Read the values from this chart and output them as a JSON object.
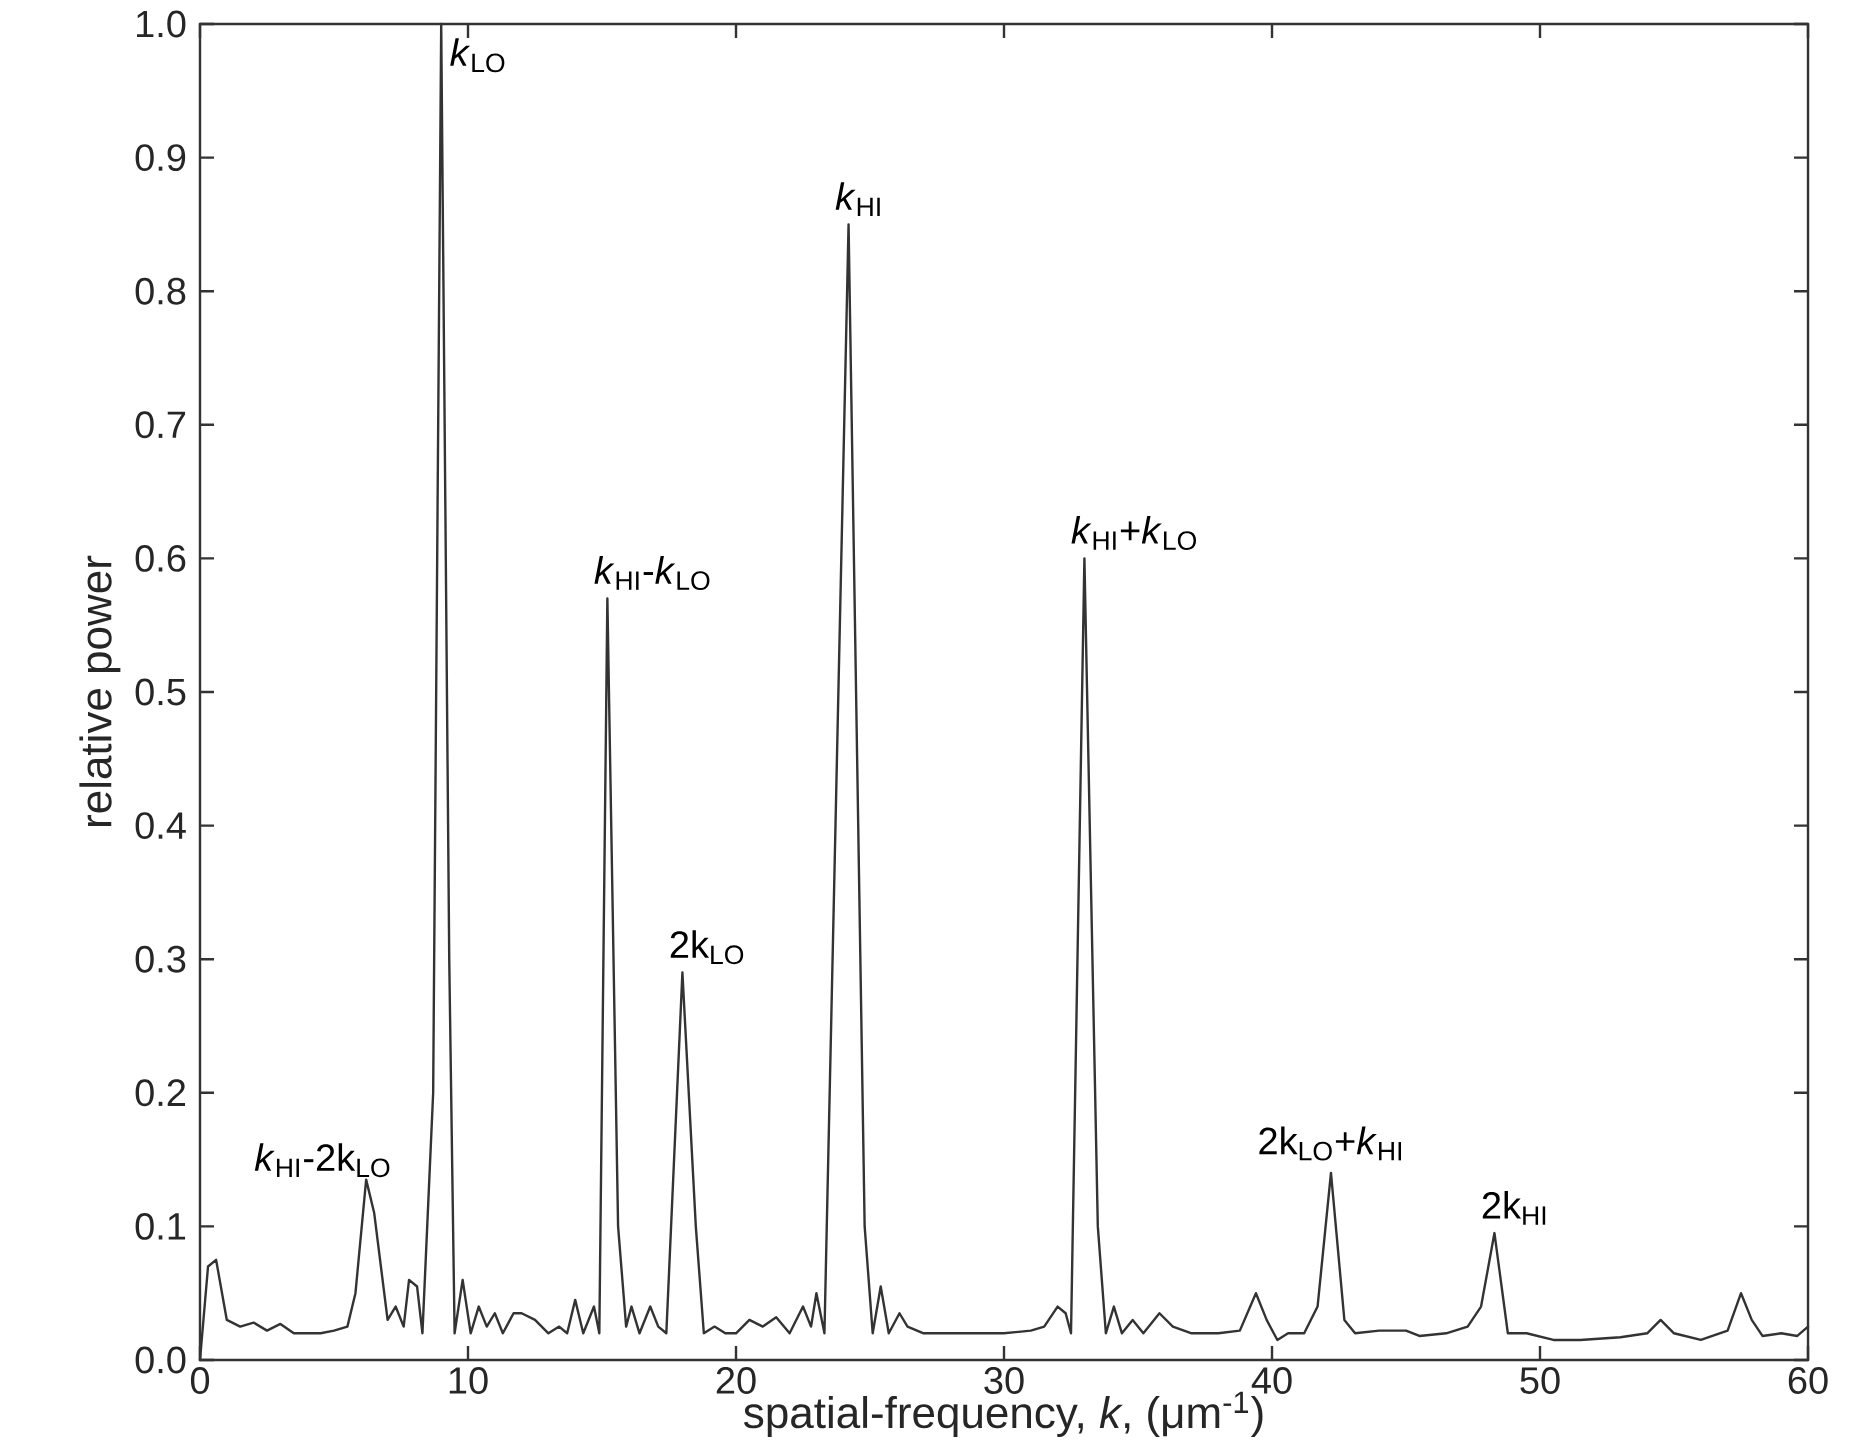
{
  "chart_data": {
    "type": "line",
    "xlabel": "spatial-frequency, *k*, (μm$^{-1}$)",
    "ylabel": "relative power",
    "xlim": [
      0,
      60
    ],
    "ylim": [
      0,
      1
    ],
    "xticks": [
      0,
      10,
      20,
      30,
      40,
      50,
      60
    ],
    "yticks": [
      {
        "value": 0,
        "label": "0.0"
      },
      {
        "value": 0.1,
        "label": "0.1"
      },
      {
        "value": 0.2,
        "label": "0.2"
      },
      {
        "value": 0.3,
        "label": "0.3"
      },
      {
        "value": 0.4,
        "label": "0.4"
      },
      {
        "value": 0.5,
        "label": "0.5"
      },
      {
        "value": 0.6,
        "label": "0.6"
      },
      {
        "value": 0.7,
        "label": "0.7"
      },
      {
        "value": 0.8,
        "label": "0.8"
      },
      {
        "value": 0.9,
        "label": "0.9"
      },
      {
        "value": 1,
        "label": "1.0"
      }
    ],
    "grid": false,
    "marker": "none",
    "line_style": "solid",
    "series": [
      {
        "color": "#333333",
        "x": [
          0,
          0.3,
          0.6,
          1.0,
          1.5,
          2,
          2.5,
          3,
          3.5,
          4,
          4.5,
          5,
          5.5,
          5.8,
          6.2,
          6.5,
          7,
          7.3,
          7.6,
          7.8,
          8.1,
          8.3,
          8.7,
          9.0,
          9.3,
          9.5,
          9.8,
          10.1,
          10.4,
          10.7,
          11,
          11.3,
          11.7,
          12,
          12.5,
          13,
          13.4,
          13.7,
          14.0,
          14.3,
          14.7,
          14.9,
          15.2,
          15.6,
          15.9,
          16.1,
          16.4,
          16.8,
          17.1,
          17.4,
          18.0,
          18.5,
          18.8,
          19.2,
          19.6,
          20,
          20.5,
          21,
          21.5,
          22,
          22.5,
          22.8,
          23.0,
          23.3,
          24.2,
          24.8,
          25.1,
          25.4,
          25.7,
          26.1,
          26.4,
          27,
          28,
          29,
          30,
          31,
          31.5,
          32,
          32.3,
          32.5,
          33.0,
          33.5,
          33.8,
          34.1,
          34.4,
          34.8,
          35.2,
          35.8,
          36.3,
          37,
          38,
          38.8,
          39.4,
          39.8,
          40.2,
          40.6,
          41.2,
          41.7,
          42.2,
          42.7,
          43.1,
          44,
          45,
          45.5,
          46.5,
          47.3,
          47.8,
          48.3,
          48.8,
          49.5,
          50.5,
          51.5,
          53,
          54,
          54.5,
          55,
          56,
          57,
          57.5,
          57.9,
          58.3,
          59,
          59.6,
          60
        ],
        "values": [
          0,
          0.07,
          0.075,
          0.03,
          0.025,
          0.028,
          0.022,
          0.027,
          0.02,
          0.02,
          0.02,
          0.022,
          0.025,
          0.05,
          0.135,
          0.11,
          0.03,
          0.04,
          0.025,
          0.06,
          0.055,
          0.02,
          0.2,
          1.0,
          0.3,
          0.02,
          0.06,
          0.02,
          0.04,
          0.025,
          0.035,
          0.02,
          0.035,
          0.035,
          0.03,
          0.02,
          0.025,
          0.02,
          0.045,
          0.02,
          0.04,
          0.02,
          0.57,
          0.1,
          0.025,
          0.04,
          0.02,
          0.04,
          0.025,
          0.02,
          0.29,
          0.1,
          0.02,
          0.025,
          0.02,
          0.02,
          0.03,
          0.025,
          0.032,
          0.02,
          0.04,
          0.025,
          0.05,
          0.02,
          0.85,
          0.1,
          0.02,
          0.055,
          0.02,
          0.035,
          0.025,
          0.02,
          0.02,
          0.02,
          0.02,
          0.022,
          0.025,
          0.04,
          0.035,
          0.02,
          0.6,
          0.1,
          0.02,
          0.04,
          0.02,
          0.03,
          0.02,
          0.035,
          0.025,
          0.02,
          0.02,
          0.022,
          0.05,
          0.03,
          0.015,
          0.02,
          0.02,
          0.04,
          0.14,
          0.03,
          0.02,
          0.022,
          0.022,
          0.018,
          0.02,
          0.025,
          0.04,
          0.095,
          0.02,
          0.02,
          0.015,
          0.015,
          0.017,
          0.02,
          0.03,
          0.02,
          0.015,
          0.022,
          0.05,
          0.03,
          0.018,
          0.02,
          0.018,
          0.025
        ]
      }
    ],
    "annotations": [
      {
        "text": "*k*$_{HI}$-2k$_{LO}$",
        "x": 6.2,
        "y": 0.135
      },
      {
        "text": "*k*$_{LO}$",
        "x": 9,
        "y": 1.0
      },
      {
        "text": "*k*$_{HI}$-*k*$_{LO}$",
        "x": 15.2,
        "y": 0.57
      },
      {
        "text": "2k$_{LO}$",
        "x": 18,
        "y": 0.29
      },
      {
        "text": "*k*$_{HI}$",
        "x": 24.2,
        "y": 0.85
      },
      {
        "text": "*k*$_{HI}$+*k*$_{LO}$",
        "x": 33,
        "y": 0.6
      },
      {
        "text": "2k$_{LO}$+*k*$_{HI}$",
        "x": 42.2,
        "y": 0.14
      },
      {
        "text": "2k$_{HI}$",
        "x": 48.3,
        "y": 0.095
      }
    ]
  }
}
